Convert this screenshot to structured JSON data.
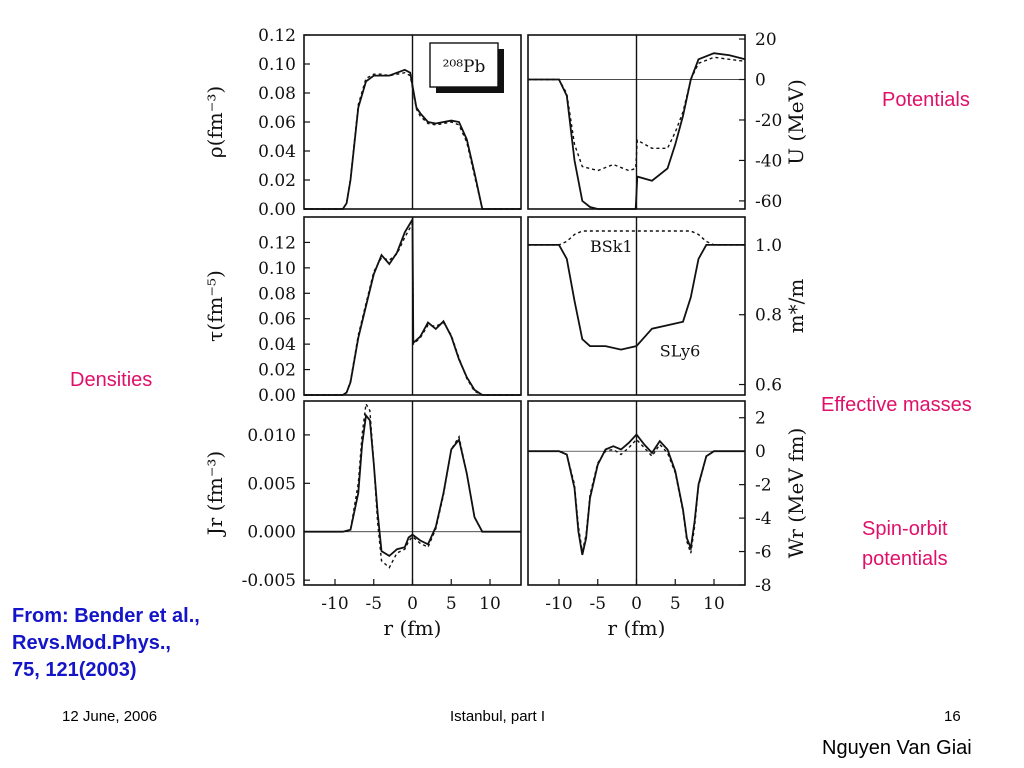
{
  "slide": {
    "annotations": {
      "potentials": "Potentials",
      "densities": "Densities",
      "effective_masses": "Effective masses",
      "spin_orbit_line1": "Spin-orbit",
      "spin_orbit_line2": "potentials"
    },
    "citation": {
      "line1": "From: Bender et al.,",
      "line2": "Revs.Mod.Phys.,",
      "line3": "75, 121(2003)"
    },
    "footer": {
      "date": "12 June, 2006",
      "venue": "Istanbul, part I",
      "page": "16",
      "author": "Nguyen Van Giai"
    },
    "colors": {
      "annotation": "#e0106a",
      "citation": "#1414c8",
      "figure_ink": "#111111"
    }
  },
  "chart_data": [
    {
      "type": "line",
      "panel": "density",
      "column": "left",
      "row": 0,
      "ylabel": "ρ(fm⁻³)",
      "xlabel": "",
      "xlim": [
        -14,
        14
      ],
      "ylim": [
        0,
        0.12
      ],
      "yticks": [
        "0.00",
        "0.02",
        "0.04",
        "0.06",
        "0.08",
        "0.10",
        "0.12"
      ],
      "xticks": [],
      "legend": "²⁰⁸Pb",
      "series": [
        {
          "style": "solid",
          "x": [
            -14,
            -9,
            -8.5,
            -8,
            -7,
            -6,
            -5,
            -4,
            -3,
            -2,
            -1,
            -0.3,
            0.5,
            1,
            2,
            3,
            4,
            5,
            6,
            7,
            8,
            9,
            14
          ],
          "y": [
            0,
            0,
            0.004,
            0.02,
            0.07,
            0.088,
            0.092,
            0.092,
            0.092,
            0.094,
            0.096,
            0.094,
            0.07,
            0.066,
            0.06,
            0.059,
            0.06,
            0.061,
            0.06,
            0.048,
            0.025,
            0,
            0
          ]
        },
        {
          "style": "dashed",
          "x": [
            -14,
            -9,
            -8.5,
            -8,
            -7,
            -6,
            -5,
            -4,
            -3,
            -2,
            -1,
            -0.3,
            0.5,
            1,
            2,
            3,
            4,
            5,
            6,
            7,
            8,
            9,
            14
          ],
          "y": [
            0,
            0,
            0.004,
            0.021,
            0.072,
            0.09,
            0.093,
            0.093,
            0.092,
            0.093,
            0.094,
            0.092,
            0.069,
            0.064,
            0.059,
            0.058,
            0.059,
            0.06,
            0.058,
            0.046,
            0.023,
            0,
            0
          ]
        }
      ]
    },
    {
      "type": "line",
      "panel": "potential",
      "column": "right",
      "row": 0,
      "ylabel": "U (MeV)",
      "xlabel": "",
      "xlim": [
        -14,
        14
      ],
      "ylim": [
        -64,
        22
      ],
      "yticks": [
        "-60",
        "-40",
        "-20",
        "0",
        "20"
      ],
      "xticks": [],
      "series": [
        {
          "style": "solid",
          "x": [
            -14,
            -10,
            -9,
            -8,
            -7,
            -6,
            -5,
            -3,
            -1,
            -0.1,
            0.1,
            2,
            4,
            5,
            6,
            7,
            8,
            10,
            12,
            14
          ],
          "y": [
            0,
            0,
            -8,
            -40,
            -60,
            -63,
            -64,
            -64,
            -64,
            -64,
            -48,
            -50,
            -44,
            -32,
            -18,
            0,
            10,
            13,
            12,
            10
          ]
        },
        {
          "style": "dashed",
          "x": [
            -14,
            -10,
            -9,
            -8,
            -7,
            -6,
            -5,
            -3,
            -1,
            -0.1,
            0.1,
            2,
            4,
            5,
            6,
            7,
            8,
            10,
            12,
            14
          ],
          "y": [
            0,
            0,
            -7,
            -32,
            -43,
            -44,
            -45,
            -42,
            -45,
            -44,
            -30,
            -34,
            -34,
            -26,
            -16,
            0,
            8,
            11,
            10,
            9
          ]
        }
      ]
    },
    {
      "type": "line",
      "panel": "kinetic-density",
      "column": "left",
      "row": 1,
      "ylabel": "τ(fm⁻⁵)",
      "xlabel": "",
      "xlim": [
        -14,
        14
      ],
      "ylim": [
        0,
        0.14
      ],
      "yticks": [
        "0.00",
        "0.02",
        "0.04",
        "0.06",
        "0.08",
        "0.10",
        "0.12"
      ],
      "xticks": [],
      "series": [
        {
          "style": "solid",
          "x": [
            -14,
            -9,
            -8.5,
            -8,
            -7,
            -6,
            -5,
            -4,
            -3,
            -2,
            -1,
            0,
            0.1,
            1,
            2,
            3,
            4,
            5,
            6,
            7,
            8,
            9,
            14
          ],
          "y": [
            0,
            0,
            0.002,
            0.01,
            0.045,
            0.07,
            0.095,
            0.11,
            0.103,
            0.112,
            0.128,
            0.138,
            0.041,
            0.046,
            0.057,
            0.052,
            0.058,
            0.046,
            0.028,
            0.014,
            0.004,
            0,
            0
          ]
        },
        {
          "style": "dashed",
          "x": [
            -14,
            -9,
            -8.5,
            -8,
            -7,
            -6,
            -5,
            -4,
            -3,
            -2,
            -1,
            0,
            0.1,
            1,
            2,
            3,
            4,
            5,
            6,
            7,
            8,
            9,
            14
          ],
          "y": [
            0,
            0,
            0.002,
            0.011,
            0.047,
            0.072,
            0.097,
            0.108,
            0.106,
            0.111,
            0.124,
            0.135,
            0.04,
            0.045,
            0.055,
            0.054,
            0.057,
            0.047,
            0.029,
            0.013,
            0.003,
            0,
            0
          ]
        }
      ]
    },
    {
      "type": "line",
      "panel": "effective-mass",
      "column": "right",
      "row": 1,
      "ylabel": "m*/m",
      "xlabel": "",
      "xlim": [
        -14,
        14
      ],
      "ylim": [
        0.57,
        1.08
      ],
      "yticks": [
        "0.6",
        "0.8",
        "1.0"
      ],
      "xticks": [],
      "annotations": [
        "BSk1",
        "SLy6"
      ],
      "series": [
        {
          "name": "SLy6",
          "style": "solid",
          "x": [
            -14,
            -10,
            -9,
            -8,
            -7,
            -6,
            -4,
            -2,
            0,
            2,
            4,
            6,
            7,
            8,
            9,
            10,
            14
          ],
          "y": [
            1.0,
            1.0,
            0.96,
            0.84,
            0.73,
            0.71,
            0.71,
            0.7,
            0.71,
            0.76,
            0.77,
            0.78,
            0.85,
            0.96,
            1.0,
            1.0,
            1.0
          ]
        },
        {
          "name": "BSk1",
          "style": "dashed",
          "x": [
            -14,
            -10,
            -9,
            -8,
            -7,
            -6,
            6,
            7,
            8,
            9,
            10,
            14
          ],
          "y": [
            1.0,
            1.0,
            1.01,
            1.03,
            1.04,
            1.04,
            1.04,
            1.04,
            1.03,
            1.01,
            1.0,
            1.0
          ]
        }
      ]
    },
    {
      "type": "line",
      "panel": "spin-current",
      "column": "left",
      "row": 2,
      "ylabel": "Jr (fm⁻³)",
      "xlabel": "r (fm)",
      "xlim": [
        -14,
        14
      ],
      "ylim": [
        -0.0055,
        0.0135
      ],
      "yticks": [
        "-0.005",
        "0.000",
        "0.005",
        "0.010"
      ],
      "xticks": [
        "-10",
        "-5",
        "0",
        "5",
        "10"
      ],
      "series": [
        {
          "style": "solid",
          "x": [
            -14,
            -9,
            -8,
            -7,
            -6.5,
            -6,
            -5.5,
            -5,
            -4.5,
            -4,
            -3,
            -2,
            -1,
            -0.5,
            0,
            1,
            2,
            3,
            4,
            5,
            6,
            7,
            8,
            9,
            14
          ],
          "y": [
            0,
            0,
            0.0002,
            0.004,
            0.009,
            0.012,
            0.0115,
            0.007,
            0.002,
            -0.002,
            -0.0025,
            -0.0018,
            -0.0016,
            -0.0006,
            -0.0003,
            -0.0009,
            -0.0013,
            0.0005,
            0.004,
            0.0085,
            0.0095,
            0.006,
            0.0015,
            0,
            0
          ]
        },
        {
          "style": "dashed",
          "x": [
            -14,
            -9,
            -8,
            -7,
            -6.5,
            -6,
            -5.5,
            -5,
            -4.5,
            -4,
            -3,
            -2,
            -1,
            -0.5,
            0,
            1,
            2,
            3,
            4,
            5,
            6,
            7,
            8,
            9,
            14
          ],
          "y": [
            0,
            0,
            0.0002,
            0.005,
            0.01,
            0.0132,
            0.0125,
            0.007,
            0.001,
            -0.003,
            -0.0037,
            -0.0022,
            -0.0018,
            -0.001,
            -0.0005,
            -0.0012,
            -0.0016,
            0.0003,
            0.0038,
            0.0085,
            0.0098,
            0.006,
            0.0015,
            0,
            0
          ]
        }
      ]
    },
    {
      "type": "line",
      "panel": "spin-orbit-potential",
      "column": "right",
      "row": 2,
      "ylabel": "Wr (MeV fm)",
      "xlabel": "r (fm)",
      "xlim": [
        -14,
        14
      ],
      "ylim": [
        -8,
        3
      ],
      "yticks": [
        "-8",
        "-6",
        "-4",
        "-2",
        "0",
        "2"
      ],
      "xticks": [
        "-10",
        "-5",
        "0",
        "5",
        "10"
      ],
      "series": [
        {
          "style": "solid",
          "x": [
            -14,
            -10,
            -9,
            -8,
            -7.5,
            -7,
            -6.5,
            -6,
            -5,
            -4,
            -3,
            -2,
            -1,
            0,
            1,
            2,
            3,
            4,
            5,
            6,
            6.5,
            7,
            7.5,
            8,
            9,
            10,
            14
          ],
          "y": [
            0,
            0,
            -0.2,
            -2.2,
            -4.8,
            -6.2,
            -5.2,
            -2.8,
            -0.8,
            0.1,
            0.3,
            0.1,
            0.5,
            1.0,
            0.4,
            -0.1,
            0.6,
            0.1,
            -1.2,
            -3.5,
            -5.2,
            -5.8,
            -4.2,
            -2.0,
            -0.3,
            0,
            0
          ]
        },
        {
          "style": "dashed",
          "x": [
            -14,
            -10,
            -9,
            -8,
            -7.5,
            -7,
            -6.5,
            -6,
            -5,
            -4,
            -3,
            -2,
            -1,
            0,
            1,
            2,
            3,
            4,
            5,
            6,
            6.5,
            7,
            7.5,
            8,
            9,
            10,
            14
          ],
          "y": [
            0,
            0,
            -0.2,
            -2.0,
            -4.5,
            -6.0,
            -5.0,
            -2.6,
            -0.7,
            0.0,
            0.1,
            -0.2,
            0.2,
            0.7,
            0.2,
            -0.3,
            0.4,
            -0.1,
            -1.3,
            -3.6,
            -5.4,
            -6.1,
            -4.5,
            -2.1,
            -0.3,
            0,
            0
          ]
        }
      ]
    }
  ]
}
